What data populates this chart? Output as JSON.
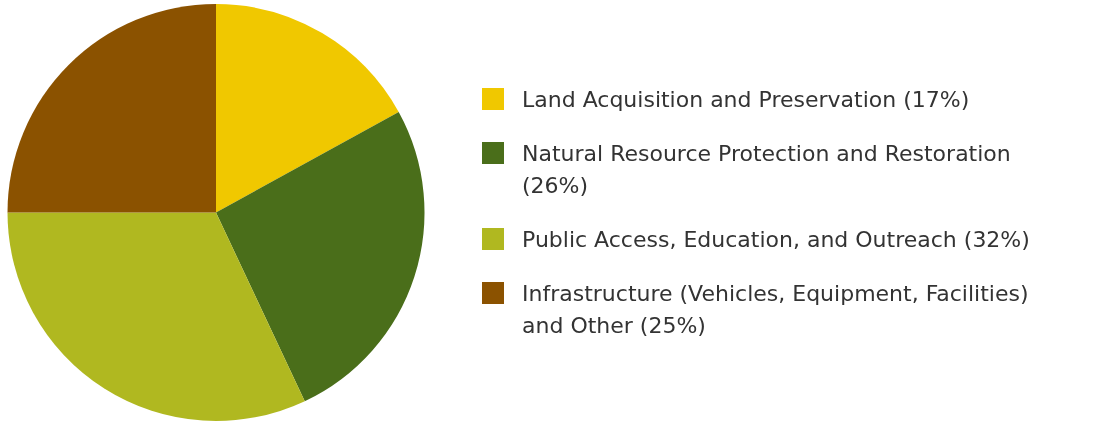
{
  "chart_data": {
    "type": "pie",
    "categories": [
      "Land Acquisition and Preservation (17%)",
      "Natural Resource Protection and Restoration (26%)",
      "Public Access, Education, and Outreach (32%)",
      "Infrastructure (Vehicles, Equipment, Facilities) and Other (25%)"
    ],
    "values": [
      17,
      26,
      32,
      25
    ],
    "colors": [
      "#f0c800",
      "#4a6e1a",
      "#b0b820",
      "#8b5200"
    ],
    "legend": "right"
  }
}
